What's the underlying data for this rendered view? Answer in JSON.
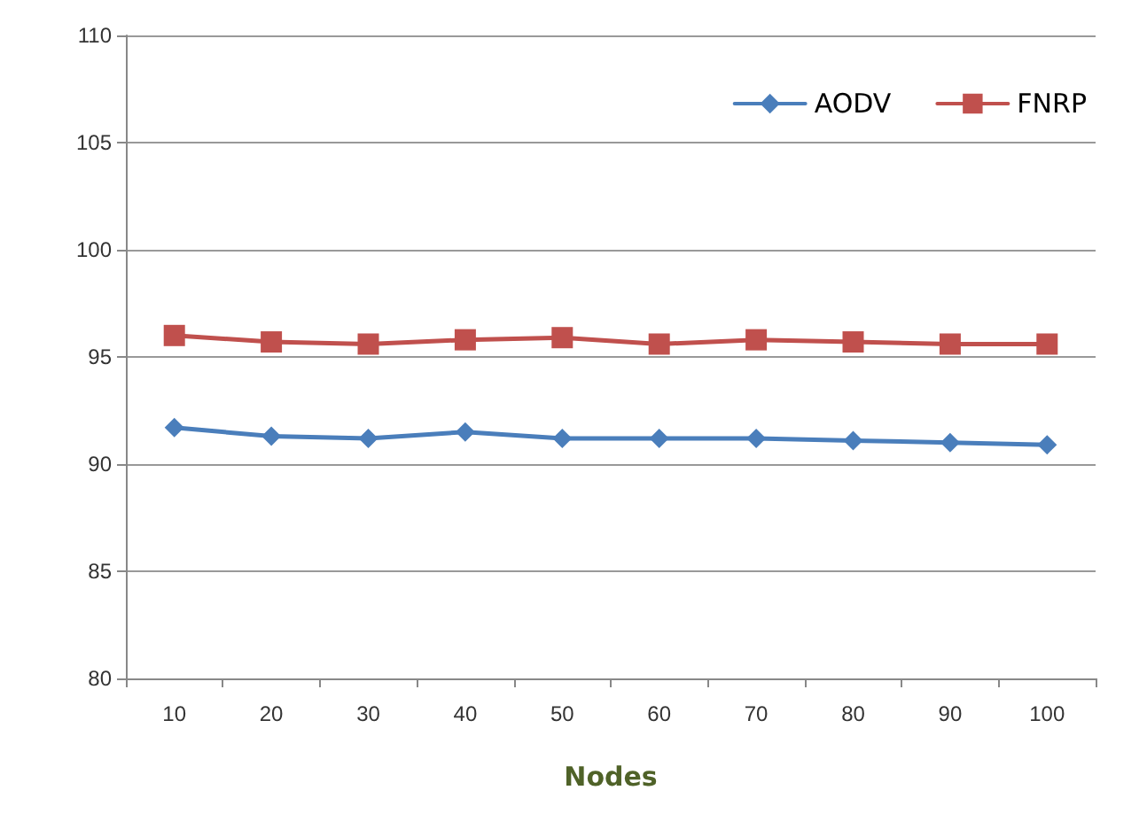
{
  "chart_data": {
    "type": "line",
    "xlabel": "Nodes",
    "categories": [
      "10",
      "20",
      "30",
      "40",
      "50",
      "60",
      "70",
      "80",
      "90",
      "100"
    ],
    "series": [
      {
        "name": "AODV",
        "color": "#4a7ebb",
        "marker": "diamond",
        "values": [
          91.7,
          91.3,
          91.2,
          91.5,
          91.2,
          91.2,
          91.2,
          91.1,
          91.0,
          90.9
        ]
      },
      {
        "name": "FNRP",
        "color": "#c0504d",
        "marker": "square",
        "values": [
          96.0,
          95.7,
          95.6,
          95.8,
          95.9,
          95.6,
          95.8,
          95.7,
          95.6,
          95.6
        ]
      }
    ],
    "ylim": [
      80,
      110
    ],
    "yticks": [
      80,
      85,
      90,
      95,
      100,
      105,
      110
    ],
    "grid": "y",
    "legend": "top right"
  }
}
